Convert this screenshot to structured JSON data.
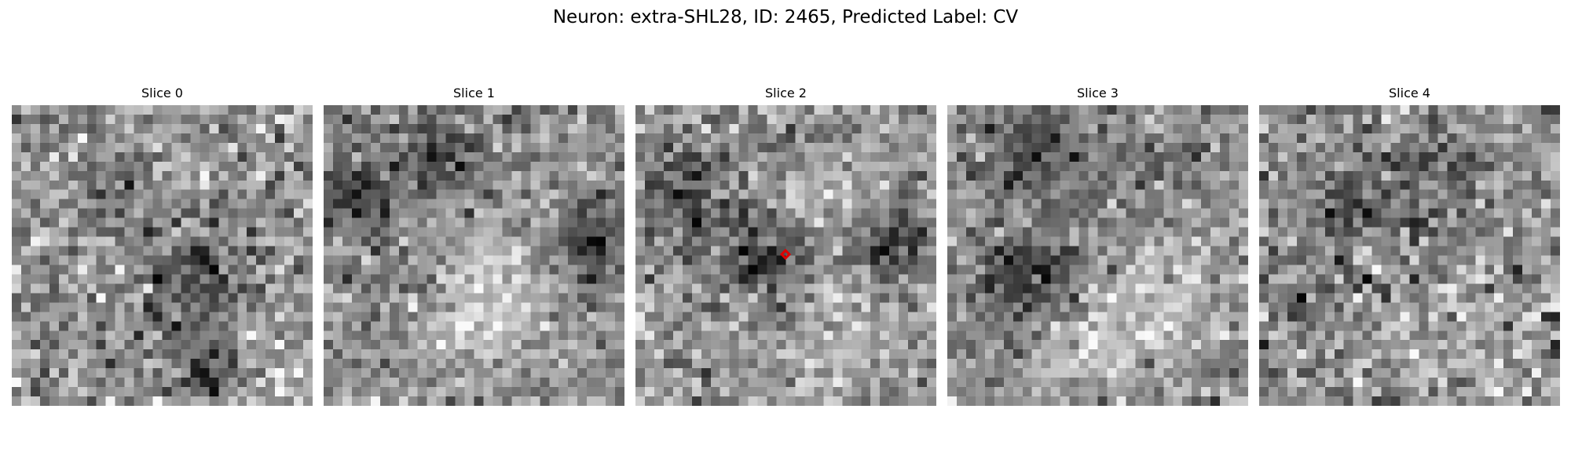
{
  "figure": {
    "title": "Neuron: extra-SHL28, ID: 2465, Predicted Label: CV"
  },
  "slices": [
    {
      "title": "Slice 0",
      "seed": 11,
      "blobs": []
    },
    {
      "title": "Slice 1",
      "seed": 23,
      "blobs": []
    },
    {
      "title": "Slice 2",
      "seed": 37,
      "blobs": [],
      "marker": true
    },
    {
      "title": "Slice 3",
      "seed": 53,
      "blobs": []
    },
    {
      "title": "Slice 4",
      "seed": 71,
      "blobs": []
    }
  ],
  "colormap": "gray",
  "marker": {
    "shape": "diamond",
    "color": "#e00000"
  }
}
